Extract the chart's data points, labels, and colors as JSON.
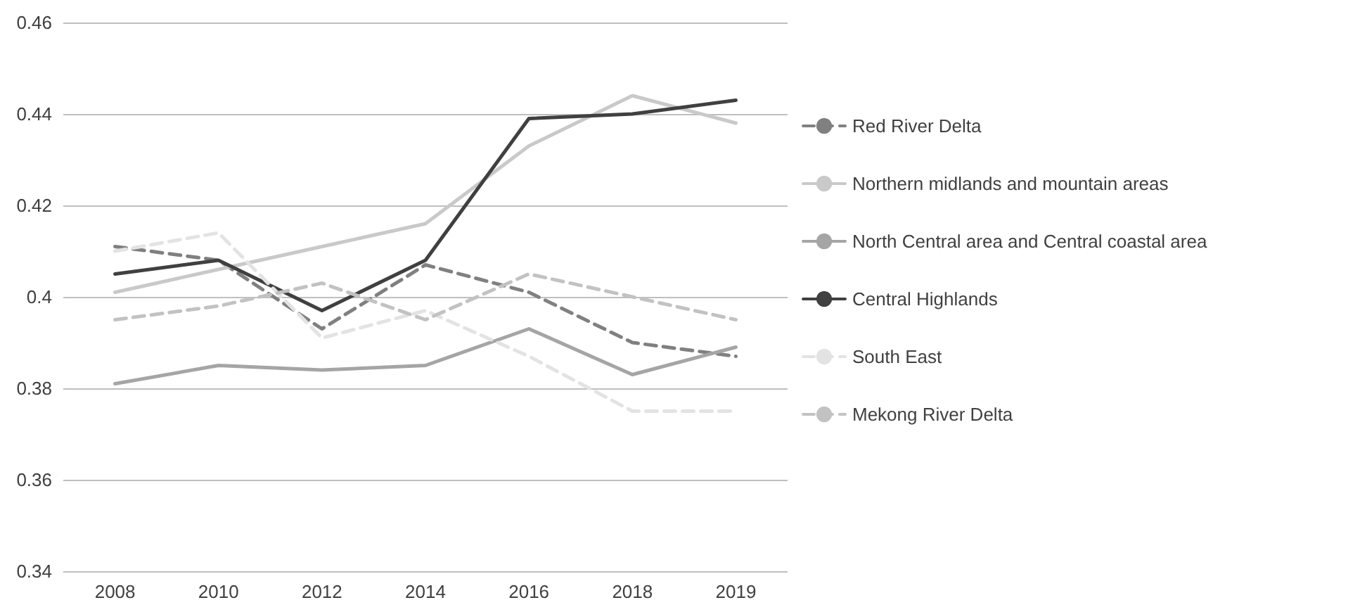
{
  "chart_data": {
    "type": "line",
    "categories": [
      "2008",
      "2010",
      "2012",
      "2014",
      "2016",
      "2018",
      "2019"
    ],
    "series": [
      {
        "name": "Red River Delta",
        "color": "#808080",
        "line_style": "dashed",
        "values": [
          0.411,
          0.408,
          0.393,
          0.407,
          0.401,
          0.39,
          0.387
        ]
      },
      {
        "name": "Northern midlands and mountain areas",
        "color": "#c9c9c9",
        "line_style": "solid",
        "values": [
          0.401,
          0.406,
          0.411,
          0.416,
          0.433,
          0.444,
          0.438
        ]
      },
      {
        "name": "North Central area and Central coastal area",
        "color": "#a5a5a5",
        "line_style": "solid",
        "values": [
          0.381,
          0.385,
          0.384,
          0.385,
          0.393,
          0.383,
          0.389
        ]
      },
      {
        "name": "Central Highlands",
        "color": "#404040",
        "line_style": "solid",
        "values": [
          0.405,
          0.408,
          0.397,
          0.408,
          0.439,
          0.44,
          0.443
        ]
      },
      {
        "name": "South East",
        "color": "#e3e3e3",
        "line_style": "dashed",
        "values": [
          0.41,
          0.414,
          0.391,
          0.397,
          0.387,
          0.375,
          0.375
        ]
      },
      {
        "name": "Mekong River Delta",
        "color": "#c2c2c2",
        "line_style": "dashed",
        "values": [
          0.395,
          0.398,
          0.403,
          0.395,
          0.405,
          0.4,
          0.395
        ]
      }
    ],
    "ylim": [
      0.34,
      0.46
    ],
    "yticks": [
      0.34,
      0.36,
      0.38,
      {
        "value": 0.4,
        "label": "0.4"
      },
      0.42,
      0.44,
      0.46
    ],
    "grid": "y",
    "legend": "right",
    "marker": "none"
  }
}
